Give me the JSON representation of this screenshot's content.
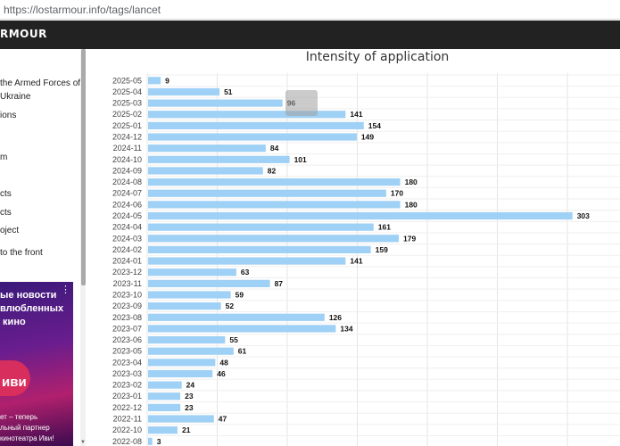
{
  "browser": {
    "url": "https://lostarmour.info/tags/lancet"
  },
  "site": {
    "logo_text": "RMOUR"
  },
  "sidebar": {
    "items": [
      {
        "label": "the Armed Forces of"
      },
      {
        "label": " Ukraine"
      },
      {
        "label": "ions"
      },
      {
        "label": "m"
      },
      {
        "label": "cts"
      },
      {
        "label": "cts"
      },
      {
        "label": "oject"
      },
      {
        "label": "to the front"
      }
    ]
  },
  "ad": {
    "headline": "ые новости\nвлюбленных\n кино",
    "brand": "иви",
    "footer": "ет – теперь\nльный партнер\nкинотеатра Иви!",
    "accent": "#e0305a"
  },
  "chart_data": {
    "type": "bar",
    "orientation": "horizontal",
    "title": "Intensity of application",
    "bar_color": "#9fd0f5",
    "grid": true,
    "categories": [
      "2025-05",
      "2025-04",
      "2025-03",
      "2025-02",
      "2025-01",
      "2024-12",
      "2024-11",
      "2024-10",
      "2024-09",
      "2024-08",
      "2024-07",
      "2024-06",
      "2024-05",
      "2024-04",
      "2024-03",
      "2024-02",
      "2024-01",
      "2023-12",
      "2023-11",
      "2023-10",
      "2023-09",
      "2023-08",
      "2023-07",
      "2023-06",
      "2023-05",
      "2023-04",
      "2023-03",
      "2023-02",
      "2023-01",
      "2022-12",
      "2022-11",
      "2022-10",
      "2022-08"
    ],
    "values": [
      9,
      51,
      96,
      141,
      154,
      149,
      84,
      101,
      82,
      180,
      170,
      180,
      303,
      161,
      179,
      159,
      141,
      63,
      87,
      59,
      52,
      126,
      134,
      55,
      61,
      48,
      46,
      24,
      23,
      23,
      47,
      21,
      3
    ],
    "xlim": [
      0,
      340
    ]
  }
}
